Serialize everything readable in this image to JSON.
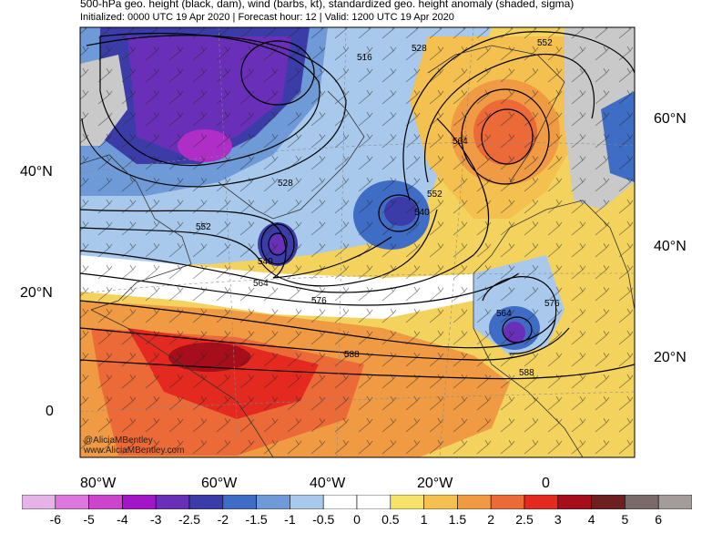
{
  "header": {
    "title": "500-hPa geo. height (black, dam), wind (barbs, kt), standardized geo. height anomaly (shaded, sigma)",
    "subtitle": "Initialized: 0000 UTC 19 Apr 2020 | Forecast hour: 12 | Valid: 1200 UTC 19 Apr 2020"
  },
  "lat_labels_left": [
    "40°N",
    "20°N",
    "0"
  ],
  "lat_labels_right": [
    "60°N",
    "40°N",
    "20°N"
  ],
  "lon_labels": [
    "80°W",
    "60°W",
    "40°W",
    "20°W",
    "0"
  ],
  "contour_labels": [
    "516",
    "528",
    "552",
    "564",
    "528",
    "552",
    "540",
    "552",
    "540",
    "564",
    "576",
    "588",
    "564",
    "576",
    "588"
  ],
  "colorbar": {
    "ticks": [
      "-6",
      "-5",
      "-4",
      "-3",
      "-2.5",
      "-2",
      "-1.5",
      "-1",
      "-0.5",
      "0",
      "0.5",
      "1",
      "1.5",
      "2",
      "2.5",
      "3",
      "4",
      "5",
      "6"
    ],
    "colors": [
      "#e6b3e6",
      "#dd77dd",
      "#cc44cc",
      "#a216c8",
      "#6a2fb8",
      "#3c3ca8",
      "#3f6cc4",
      "#6f9ad8",
      "#a8c8ec",
      "#ffffff",
      "#ffffff",
      "#f6e36a",
      "#f4c050",
      "#f09a44",
      "#ec6a38",
      "#e42a20",
      "#a50e1a",
      "#6e2020",
      "#7a6a6a",
      "#a49b9b"
    ]
  },
  "credit": [
    "@AliciaMBentley",
    "www.AliciaMBentley.com"
  ]
}
